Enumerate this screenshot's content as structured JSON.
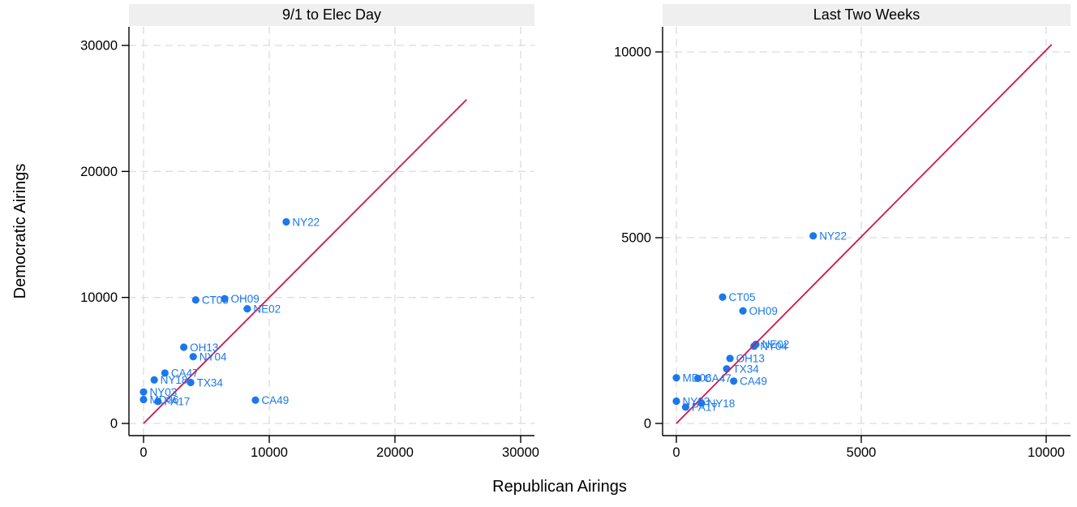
{
  "chart_data": {
    "type": "scatter",
    "xlabel": "Republican Airings",
    "ylabel": "Democratic Airings",
    "grid": "dashed",
    "legend": "none",
    "colors": {
      "marker": "#1b78ec",
      "point_label": "#1b78ec",
      "equality_line": "#d0164e",
      "gridline": "#dcdcdc",
      "axis": "#000000",
      "strip_bg": "#efefef",
      "tick_label": "#000000"
    },
    "panels": [
      {
        "title": "9/1 to Elec Day",
        "xticks": [
          0,
          10000,
          20000,
          30000
        ],
        "yticks": [
          0,
          10000,
          20000,
          30000
        ],
        "xlim": [
          0,
          31000
        ],
        "ylim": [
          0,
          31000
        ],
        "equality_line": {
          "x1": 0,
          "y1": 0,
          "x2": 25700,
          "y2": 25700
        },
        "points": [
          {
            "label": "NY22",
            "x": 11350,
            "y": 16000
          },
          {
            "label": "CT05",
            "x": 4150,
            "y": 9800
          },
          {
            "label": "OH09",
            "x": 6450,
            "y": 9900
          },
          {
            "label": "NE02",
            "x": 8250,
            "y": 9100
          },
          {
            "label": "OH13",
            "x": 3200,
            "y": 6050
          },
          {
            "label": "NY04",
            "x": 3950,
            "y": 5300
          },
          {
            "label": "CA47",
            "x": 1700,
            "y": 4000
          },
          {
            "label": "NY18",
            "x": 850,
            "y": 3450
          },
          {
            "label": "TX34",
            "x": 3750,
            "y": 3250
          },
          {
            "label": "NY03",
            "x": 0,
            "y": 2500
          },
          {
            "label": "MD06",
            "x": 0,
            "y": 1900
          },
          {
            "label": "PA17",
            "x": 1150,
            "y": 1750
          },
          {
            "label": "CA49",
            "x": 8900,
            "y": 1850
          }
        ]
      },
      {
        "title": "Last Two Weeks",
        "xticks": [
          0,
          5000,
          10000
        ],
        "yticks": [
          0,
          5000,
          10000
        ],
        "xlim": [
          0,
          10650
        ],
        "ylim": [
          0,
          10700
        ],
        "equality_line": {
          "x1": 0,
          "y1": 0,
          "x2": 10150,
          "y2": 10200
        },
        "points": [
          {
            "label": "NY22",
            "x": 3700,
            "y": 5050
          },
          {
            "label": "CT05",
            "x": 1250,
            "y": 3400
          },
          {
            "label": "OH09",
            "x": 1800,
            "y": 3030
          },
          {
            "label": "NE02",
            "x": 2150,
            "y": 2130
          },
          {
            "label": "NY04",
            "x": 2100,
            "y": 2080
          },
          {
            "label": "OH13",
            "x": 1450,
            "y": 1750
          },
          {
            "label": "TX34",
            "x": 1360,
            "y": 1470
          },
          {
            "label": "MD06",
            "x": 0,
            "y": 1230
          },
          {
            "label": "CA47",
            "x": 580,
            "y": 1215
          },
          {
            "label": "CA49",
            "x": 1550,
            "y": 1140
          },
          {
            "label": "NY03",
            "x": 0,
            "y": 600
          },
          {
            "label": "NY18",
            "x": 680,
            "y": 545
          },
          {
            "label": "PA17",
            "x": 250,
            "y": 440
          }
        ]
      }
    ]
  }
}
